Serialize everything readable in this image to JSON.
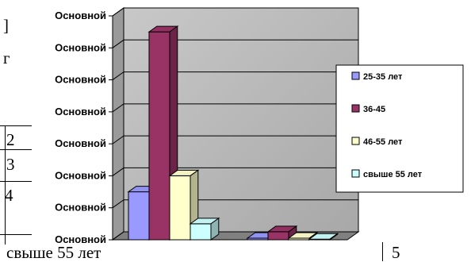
{
  "chart_data": {
    "type": "bar",
    "categories": [
      "",
      ""
    ],
    "series": [
      {
        "name": "25-35 лет",
        "color": "#9999ff",
        "values": [
          1.5,
          0.05
        ]
      },
      {
        "name": "36-45",
        "color": "#993366",
        "values": [
          6.5,
          0.25
        ]
      },
      {
        "name": "46-55 лет",
        "color": "#ffffcc",
        "values": [
          2.0,
          0.05
        ]
      },
      {
        "name": "свыше 55 лет",
        "color": "#ccffff",
        "values": [
          0.5,
          0.02
        ]
      }
    ],
    "y_tick_labels": [
      "Основной",
      "Основной",
      "Основной",
      "Основной",
      "Основной",
      "Основной",
      "Основной",
      "Основной"
    ],
    "ylim": [
      0,
      7
    ],
    "grid": true,
    "three_d": true,
    "legend_position": "right",
    "plot_wall_color": "#c0c0c0"
  },
  "background_fragments": {
    "left_texts": [
      "]",
      "г",
      "2",
      "3",
      "4"
    ],
    "bottom_left": "свыше 55 лет",
    "bottom_right": "5"
  }
}
